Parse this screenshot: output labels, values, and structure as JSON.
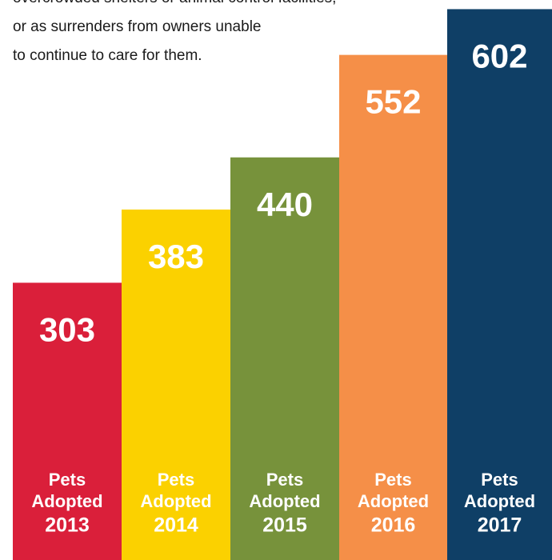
{
  "chart_data": {
    "type": "bar",
    "description": [
      "overcrowded shelters or animal control facilities,",
      "or as surrenders from owners unable",
      "to continue to care for them."
    ],
    "category_label": [
      "Pets",
      "Adopted"
    ],
    "categories": [
      "2013",
      "2014",
      "2015",
      "2016",
      "2017"
    ],
    "values": [
      303,
      383,
      440,
      552,
      602
    ],
    "colors": [
      "#da1f3a",
      "#fbd100",
      "#77923b",
      "#f58f48",
      "#0f3f66"
    ],
    "ylim": [
      0,
      612
    ]
  }
}
